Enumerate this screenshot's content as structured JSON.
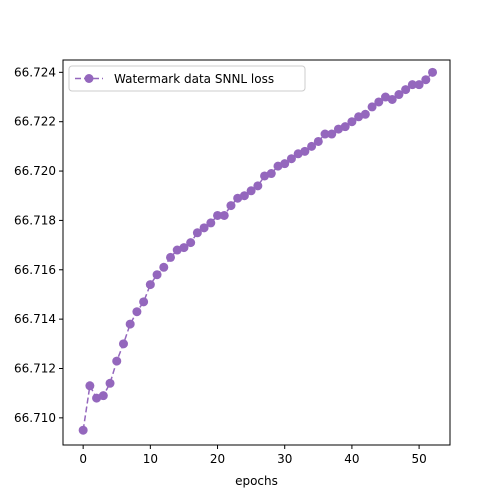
{
  "chart_data": {
    "type": "line",
    "title": "",
    "xlabel": "epochs",
    "ylabel": "",
    "xlim": [
      -3,
      54.6
    ],
    "ylim": [
      66.7089,
      66.7245
    ],
    "x_ticks": [
      0,
      10,
      20,
      30,
      40,
      50
    ],
    "x_tick_labels": [
      "0",
      "10",
      "20",
      "30",
      "40",
      "50"
    ],
    "y_ticks": [
      66.71,
      66.712,
      66.714,
      66.716,
      66.718,
      66.72,
      66.722,
      66.724
    ],
    "y_tick_labels": [
      "66.710",
      "66.712",
      "66.714",
      "66.716",
      "66.718",
      "66.720",
      "66.722",
      "66.724"
    ],
    "grid": false,
    "legend_placement": "top-left",
    "series": [
      {
        "name": "Watermark data SNNL loss",
        "color": "#9467bd",
        "line_style": "dashed",
        "marker": "circle",
        "x": [
          0,
          1,
          2,
          3,
          4,
          5,
          6,
          7,
          8,
          9,
          10,
          11,
          12,
          13,
          14,
          15,
          16,
          17,
          18,
          19,
          20,
          21,
          22,
          23,
          24,
          25,
          26,
          27,
          28,
          29,
          30,
          31,
          32,
          33,
          34,
          35,
          36,
          37,
          38,
          39,
          40,
          41,
          42,
          43,
          44,
          45,
          46,
          47,
          48,
          49,
          50,
          51,
          52
        ],
        "values": [
          66.7095,
          66.7113,
          66.7108,
          66.7109,
          66.7114,
          66.7123,
          66.713,
          66.7138,
          66.7143,
          66.7147,
          66.7154,
          66.7158,
          66.7161,
          66.7165,
          66.7168,
          66.7169,
          66.7171,
          66.7175,
          66.7177,
          66.7179,
          66.7182,
          66.7182,
          66.7186,
          66.7189,
          66.719,
          66.7192,
          66.7194,
          66.7198,
          66.7199,
          66.7202,
          66.7203,
          66.7205,
          66.7207,
          66.7208,
          66.721,
          66.7212,
          66.7215,
          66.7215,
          66.7217,
          66.7218,
          66.722,
          66.7222,
          66.7223,
          66.7226,
          66.7228,
          66.723,
          66.7229,
          66.7231,
          66.7233,
          66.7235,
          66.7235,
          66.7237,
          66.724
        ]
      }
    ]
  }
}
